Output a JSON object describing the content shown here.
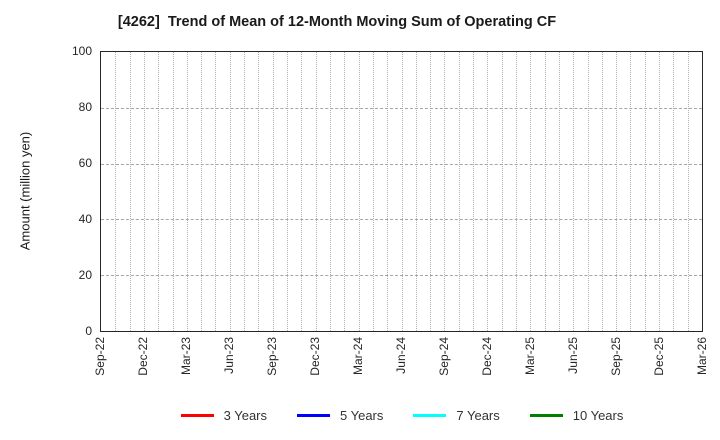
{
  "figure": {
    "background": "#ffffff"
  },
  "chart_data": {
    "type": "line",
    "title": "[4262]  Trend of Mean of 12-Month Moving Sum of Operating CF",
    "xlabel": "",
    "ylabel": "Amount (million yen)",
    "ylim": [
      0,
      100
    ],
    "y_ticks": [
      0,
      20,
      40,
      60,
      80,
      100
    ],
    "x_ticks": [
      "Sep-22",
      "Dec-22",
      "Mar-23",
      "Jun-23",
      "Sep-23",
      "Dec-23",
      "Mar-24",
      "Jun-24",
      "Sep-24",
      "Dec-24",
      "Mar-25",
      "Jun-25",
      "Sep-25",
      "Dec-25",
      "Mar-26"
    ],
    "months_per_tick": 3,
    "grid": "on",
    "grid_style": "dotted",
    "legend_position": "bottom-center",
    "data_plotted": false,
    "series": [
      {
        "name": "3 Years",
        "color": "#ff0000",
        "values": []
      },
      {
        "name": "5 Years",
        "color": "#0000ff",
        "values": []
      },
      {
        "name": "7 Years",
        "color": "#00ffff",
        "values": []
      },
      {
        "name": "10 Years",
        "color": "#008000",
        "values": []
      }
    ]
  }
}
